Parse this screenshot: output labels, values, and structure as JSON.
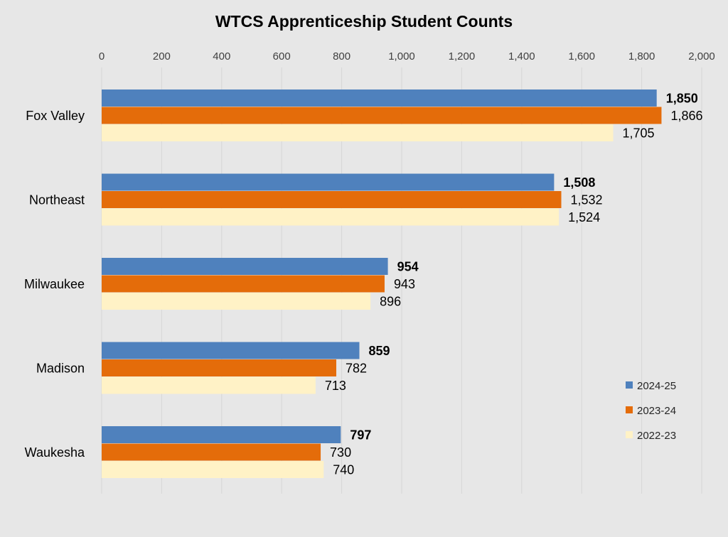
{
  "chart_data": {
    "type": "bar",
    "orientation": "horizontal",
    "title": "WTCS Apprenticeship Student Counts",
    "xlabel": "",
    "ylabel": "",
    "xlim": [
      0,
      2000
    ],
    "xticks": [
      0,
      200,
      400,
      600,
      800,
      1000,
      1200,
      1400,
      1600,
      1800,
      2000
    ],
    "xtick_labels": [
      "0",
      "200",
      "400",
      "600",
      "800",
      "1,000",
      "1,200",
      "1,400",
      "1,600",
      "1,800",
      "2,000"
    ],
    "axis_position": "top",
    "grid": true,
    "legend_position": "bottom-right",
    "categories": [
      "Fox Valley",
      "Northeast",
      "Milwaukee",
      "Madison",
      "Waukesha"
    ],
    "series": [
      {
        "name": "2024-25",
        "color": "#4f81bd",
        "values": [
          1850,
          1508,
          954,
          859,
          797
        ],
        "labels": [
          "1,850",
          "1,508",
          "954",
          "859",
          "797"
        ],
        "bold_labels": true
      },
      {
        "name": "2023-24",
        "color": "#e46c0a",
        "values": [
          1866,
          1532,
          943,
          782,
          730
        ],
        "labels": [
          "1,866",
          "1,532",
          "943",
          "782",
          "730"
        ],
        "bold_labels": false
      },
      {
        "name": "2022-23",
        "color": "#fff2c6",
        "values": [
          1705,
          1524,
          896,
          713,
          740
        ],
        "labels": [
          "1,705",
          "1,524",
          "896",
          "713",
          "740"
        ],
        "bold_labels": false
      }
    ]
  }
}
